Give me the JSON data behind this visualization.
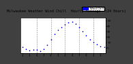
{
  "title": "Milwaukee Weather Wind Chill  Hourly Average  (24 Hours)",
  "bg_color": "#c0c0c0",
  "plot_bg": "#ffffff",
  "border_color": "#000000",
  "outer_bg": "#404040",
  "dot_color": "#0000ff",
  "dot_size": 1.5,
  "legend_color": "#0000ff",
  "legend_label": "Wind Chill",
  "hours": [
    1,
    2,
    3,
    4,
    5,
    6,
    7,
    8,
    9,
    10,
    11,
    12,
    13,
    14,
    15,
    16,
    17,
    18,
    19,
    20,
    21,
    22,
    23,
    24
  ],
  "values": [
    2,
    -2,
    -5,
    -3,
    -4,
    -6,
    -2,
    5,
    15,
    25,
    33,
    38,
    42,
    46,
    47,
    44,
    38,
    30,
    22,
    15,
    10,
    6,
    3,
    1
  ],
  "ylim": [
    -10,
    55
  ],
  "yticks": [
    0,
    10,
    20,
    30,
    40,
    50
  ],
  "xtick_positions": [
    1,
    3,
    5,
    7,
    9,
    11,
    13,
    15,
    17,
    19,
    21,
    23
  ],
  "xtick_labels": [
    "1",
    "3",
    "5",
    "7",
    "9",
    "1",
    "3",
    "5",
    "7",
    "9",
    "1",
    "3"
  ],
  "vline_positions": [
    5,
    9,
    13,
    17,
    21
  ],
  "grid_color": "#888888",
  "tick_fontsize": 3.0,
  "title_fontsize": 3.8,
  "title_color": "#000000"
}
